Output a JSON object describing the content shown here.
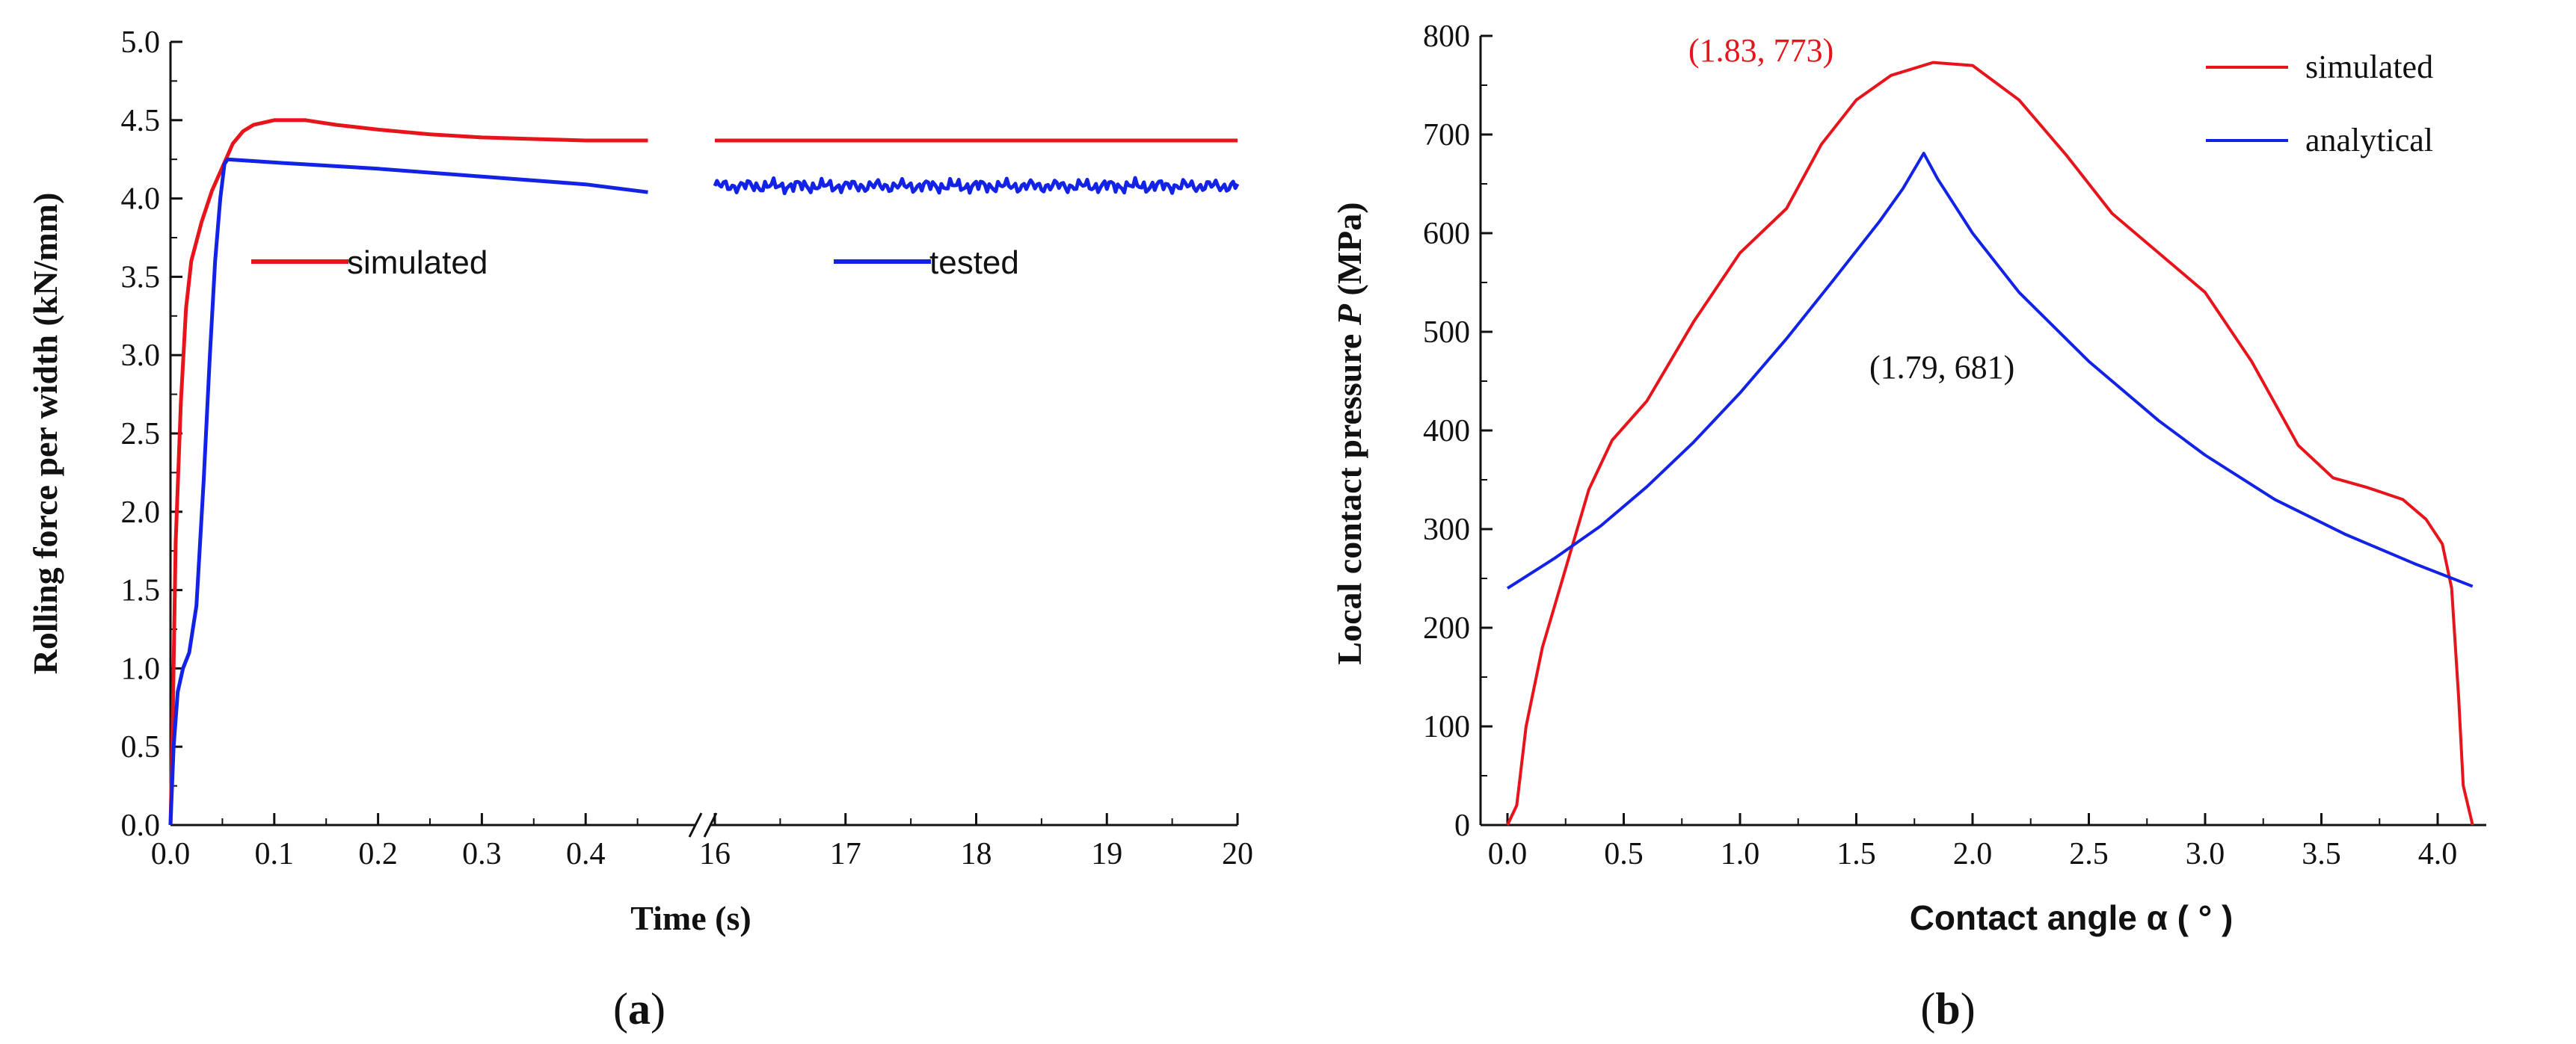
{
  "chart_data": [
    {
      "panel": "(a)",
      "type": "line",
      "ylabel": "Rolling force per width (kN/mm)",
      "xlabel": "Time (s)",
      "ylim": [
        0.0,
        5.0
      ],
      "yticks": [
        "0.0",
        "0.5",
        "1.0",
        "1.5",
        "2.0",
        "2.5",
        "3.0",
        "3.5",
        "4.0",
        "4.5",
        "5.0"
      ],
      "x_segments": [
        {
          "range": [
            0.0,
            0.5
          ],
          "ticks": [
            "0.0",
            "0.1",
            "0.2",
            "0.3",
            "0.4"
          ]
        },
        {
          "range": [
            16,
            20
          ],
          "ticks": [
            "16",
            "17",
            "18",
            "19",
            "20"
          ]
        }
      ],
      "axis_break": true,
      "legend": [
        {
          "name": "simulated",
          "color": "#e8141b"
        },
        {
          "name": "tested",
          "color": "#1222e6"
        }
      ],
      "series": [
        {
          "name": "simulated",
          "color": "#e8141b",
          "segment1": [
            [
              0.0,
              0.0
            ],
            [
              0.002,
              0.6
            ],
            [
              0.005,
              1.8
            ],
            [
              0.01,
              2.7
            ],
            [
              0.015,
              3.3
            ],
            [
              0.02,
              3.6
            ],
            [
              0.03,
              3.85
            ],
            [
              0.04,
              4.05
            ],
            [
              0.05,
              4.2
            ],
            [
              0.06,
              4.35
            ],
            [
              0.07,
              4.43
            ],
            [
              0.08,
              4.47
            ],
            [
              0.1,
              4.5
            ],
            [
              0.13,
              4.5
            ],
            [
              0.16,
              4.47
            ],
            [
              0.2,
              4.44
            ],
            [
              0.25,
              4.41
            ],
            [
              0.3,
              4.39
            ],
            [
              0.35,
              4.38
            ],
            [
              0.4,
              4.37
            ],
            [
              0.46,
              4.37
            ]
          ],
          "segment2": [
            [
              16.0,
              4.37
            ],
            [
              17.0,
              4.37
            ],
            [
              18.0,
              4.37
            ],
            [
              19.0,
              4.37
            ],
            [
              20.0,
              4.37
            ]
          ]
        },
        {
          "name": "tested",
          "color": "#1222e6",
          "segment1": [
            [
              0.0,
              0.0
            ],
            [
              0.003,
              0.5
            ],
            [
              0.007,
              0.85
            ],
            [
              0.012,
              1.0
            ],
            [
              0.018,
              1.1
            ],
            [
              0.025,
              1.4
            ],
            [
              0.032,
              2.2
            ],
            [
              0.038,
              3.0
            ],
            [
              0.043,
              3.6
            ],
            [
              0.048,
              4.0
            ],
            [
              0.052,
              4.22
            ],
            [
              0.055,
              4.25
            ],
            [
              0.1,
              4.23
            ],
            [
              0.2,
              4.19
            ],
            [
              0.3,
              4.14
            ],
            [
              0.4,
              4.09
            ],
            [
              0.46,
              4.04
            ]
          ],
          "segment2_mean": 4.08,
          "segment2_ripple": 0.04
        }
      ]
    },
    {
      "panel": "(b)",
      "type": "line",
      "ylabel_prefix": "Local contact pressure ",
      "ylabel_var": "P",
      "ylabel_suffix": " (MPa)",
      "xlabel": "Contact angle α ( ° )",
      "xlim": [
        0.0,
        4.2
      ],
      "ylim": [
        0,
        800
      ],
      "xticks": [
        "0.0",
        "0.5",
        "1.0",
        "1.5",
        "2.0",
        "2.5",
        "3.0",
        "3.5",
        "4.0"
      ],
      "yticks": [
        "0",
        "100",
        "200",
        "300",
        "400",
        "500",
        "600",
        "700",
        "800"
      ],
      "legend": [
        {
          "name": "simulated",
          "color": "#e8141b"
        },
        {
          "name": "analytical",
          "color": "#1222e6"
        }
      ],
      "annotations": [
        {
          "text": "(1.83, 773)",
          "color": "#e8141b"
        },
        {
          "text": "(1.79, 681)",
          "color": "#111111"
        }
      ],
      "series": [
        {
          "name": "simulated",
          "color": "#e8141b",
          "points": [
            [
              0.0,
              0
            ],
            [
              0.04,
              20
            ],
            [
              0.08,
              100
            ],
            [
              0.15,
              180
            ],
            [
              0.25,
              260
            ],
            [
              0.35,
              340
            ],
            [
              0.45,
              390
            ],
            [
              0.6,
              430
            ],
            [
              0.8,
              510
            ],
            [
              1.0,
              580
            ],
            [
              1.2,
              625
            ],
            [
              1.35,
              690
            ],
            [
              1.5,
              735
            ],
            [
              1.65,
              760
            ],
            [
              1.83,
              773
            ],
            [
              2.0,
              770
            ],
            [
              2.2,
              735
            ],
            [
              2.4,
              680
            ],
            [
              2.6,
              620
            ],
            [
              2.8,
              580
            ],
            [
              3.0,
              540
            ],
            [
              3.2,
              470
            ],
            [
              3.4,
              385
            ],
            [
              3.55,
              352
            ],
            [
              3.7,
              342
            ],
            [
              3.85,
              330
            ],
            [
              3.95,
              310
            ],
            [
              4.02,
              285
            ],
            [
              4.06,
              240
            ],
            [
              4.09,
              130
            ],
            [
              4.11,
              40
            ],
            [
              4.15,
              0
            ]
          ]
        },
        {
          "name": "analytical",
          "color": "#1222e6",
          "points": [
            [
              0.0,
              240
            ],
            [
              0.2,
              270
            ],
            [
              0.4,
              303
            ],
            [
              0.6,
              343
            ],
            [
              0.8,
              388
            ],
            [
              1.0,
              438
            ],
            [
              1.2,
              493
            ],
            [
              1.4,
              552
            ],
            [
              1.6,
              612
            ],
            [
              1.7,
              645
            ],
            [
              1.79,
              681
            ],
            [
              1.85,
              655
            ],
            [
              2.0,
              600
            ],
            [
              2.2,
              540
            ],
            [
              2.5,
              470
            ],
            [
              2.8,
              410
            ],
            [
              3.0,
              375
            ],
            [
              3.3,
              330
            ],
            [
              3.6,
              295
            ],
            [
              3.9,
              265
            ],
            [
              4.15,
              242
            ]
          ]
        }
      ]
    }
  ]
}
